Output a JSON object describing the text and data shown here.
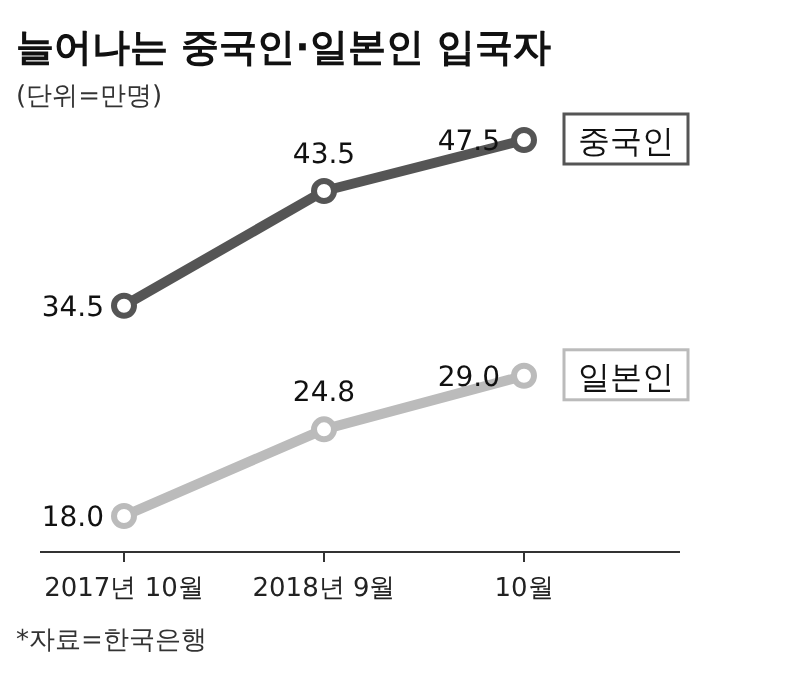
{
  "chart_data": {
    "type": "line",
    "title": "늘어나는 중국인·일본인 입국자",
    "subtitle": "(단위=만명)",
    "categories": [
      "2017년 10월",
      "2018년 9월",
      "10월"
    ],
    "series": [
      {
        "name": "중국인",
        "color": "#555555",
        "values": [
          34.5,
          43.5,
          47.5
        ],
        "value_labels": [
          "34.5",
          "43.5",
          "47.5"
        ]
      },
      {
        "name": "일본인",
        "color": "#bbbbbb",
        "values": [
          18.0,
          24.8,
          29.0
        ],
        "value_labels": [
          "18.0",
          "24.8",
          "29.0"
        ]
      }
    ],
    "annotations": [
      "*자료=한국은행"
    ],
    "marker": "circle",
    "line_style": "solid",
    "legend": false,
    "grid": false
  }
}
